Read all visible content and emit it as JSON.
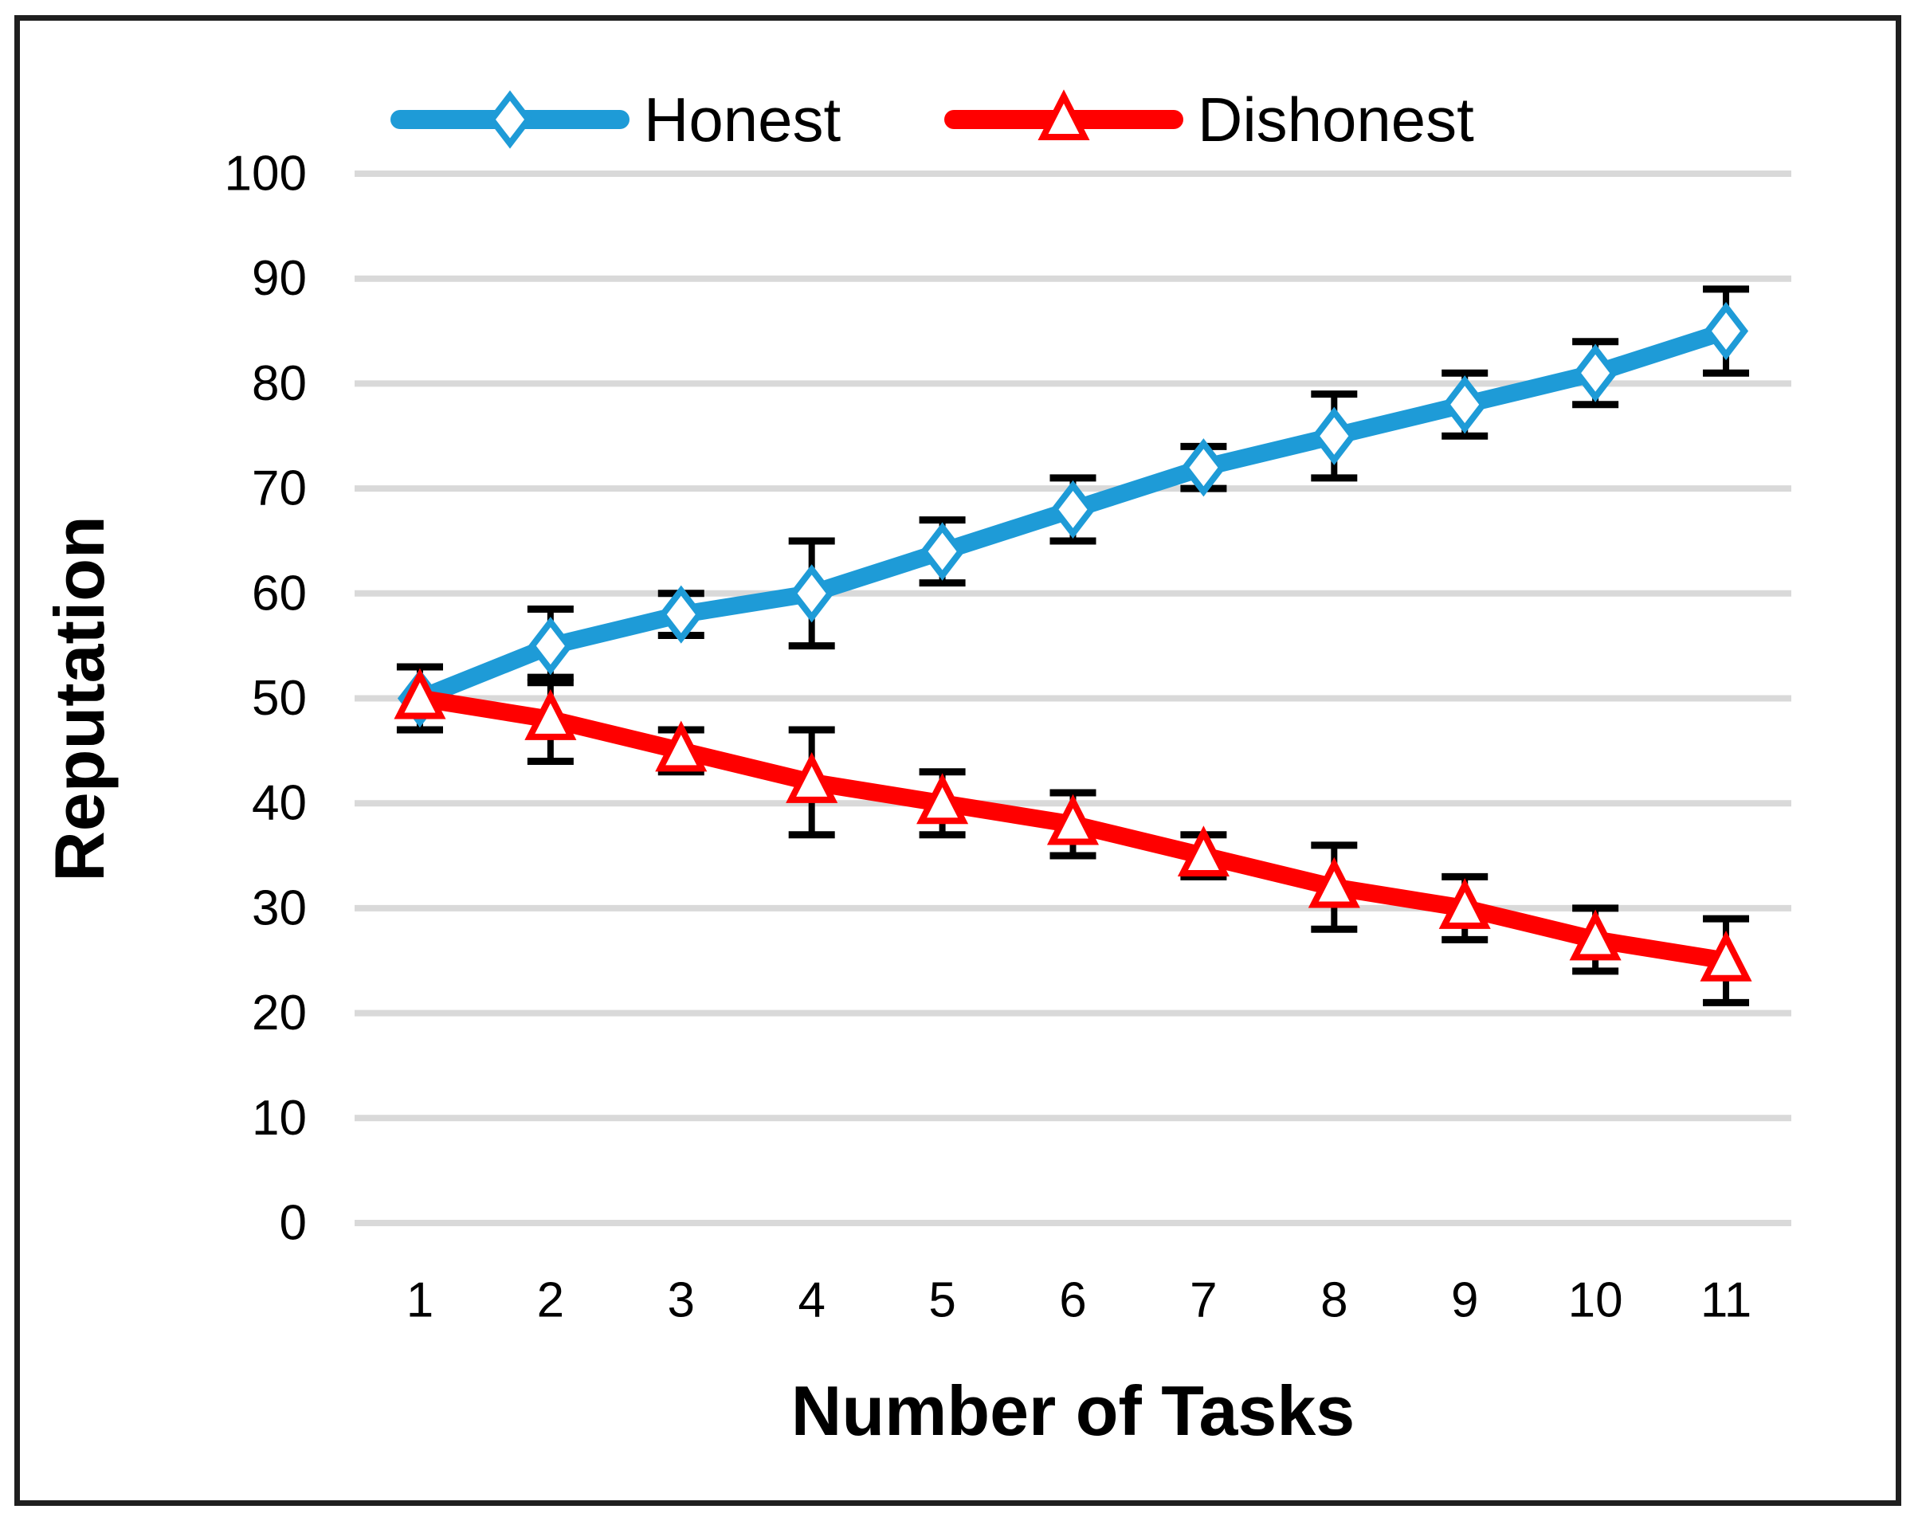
{
  "chart_data": {
    "type": "line",
    "title": "",
    "xlabel": "Number of Tasks",
    "ylabel": "Reputation",
    "categories": [
      1,
      2,
      3,
      4,
      5,
      6,
      7,
      8,
      9,
      10,
      11
    ],
    "yticks": [
      0,
      10,
      20,
      30,
      40,
      50,
      60,
      70,
      80,
      90,
      100
    ],
    "ylim": [
      0,
      100
    ],
    "grid": "horizontal",
    "legend_position": "top",
    "series": [
      {
        "name": "Honest",
        "color": "#1E9BD7",
        "marker": "diamond",
        "values": [
          50,
          55,
          58,
          60,
          64,
          68,
          72,
          75,
          78,
          81,
          85
        ],
        "error_bars": [
          3,
          3.5,
          2,
          5,
          3,
          3,
          2,
          4,
          3,
          3,
          4
        ]
      },
      {
        "name": "Dishonest",
        "color": "#FF0000",
        "marker": "triangle",
        "values": [
          50,
          48,
          45,
          42,
          40,
          38,
          35,
          32,
          30,
          27,
          25
        ],
        "error_bars": [
          3,
          4,
          2,
          5,
          3,
          3,
          2,
          4,
          3,
          3,
          4
        ]
      }
    ],
    "error_bar_color": "#000000",
    "gridline_color": "#D9D9D9",
    "background_color": "#FFFFFF",
    "frame_color": "#1F1F1F"
  }
}
